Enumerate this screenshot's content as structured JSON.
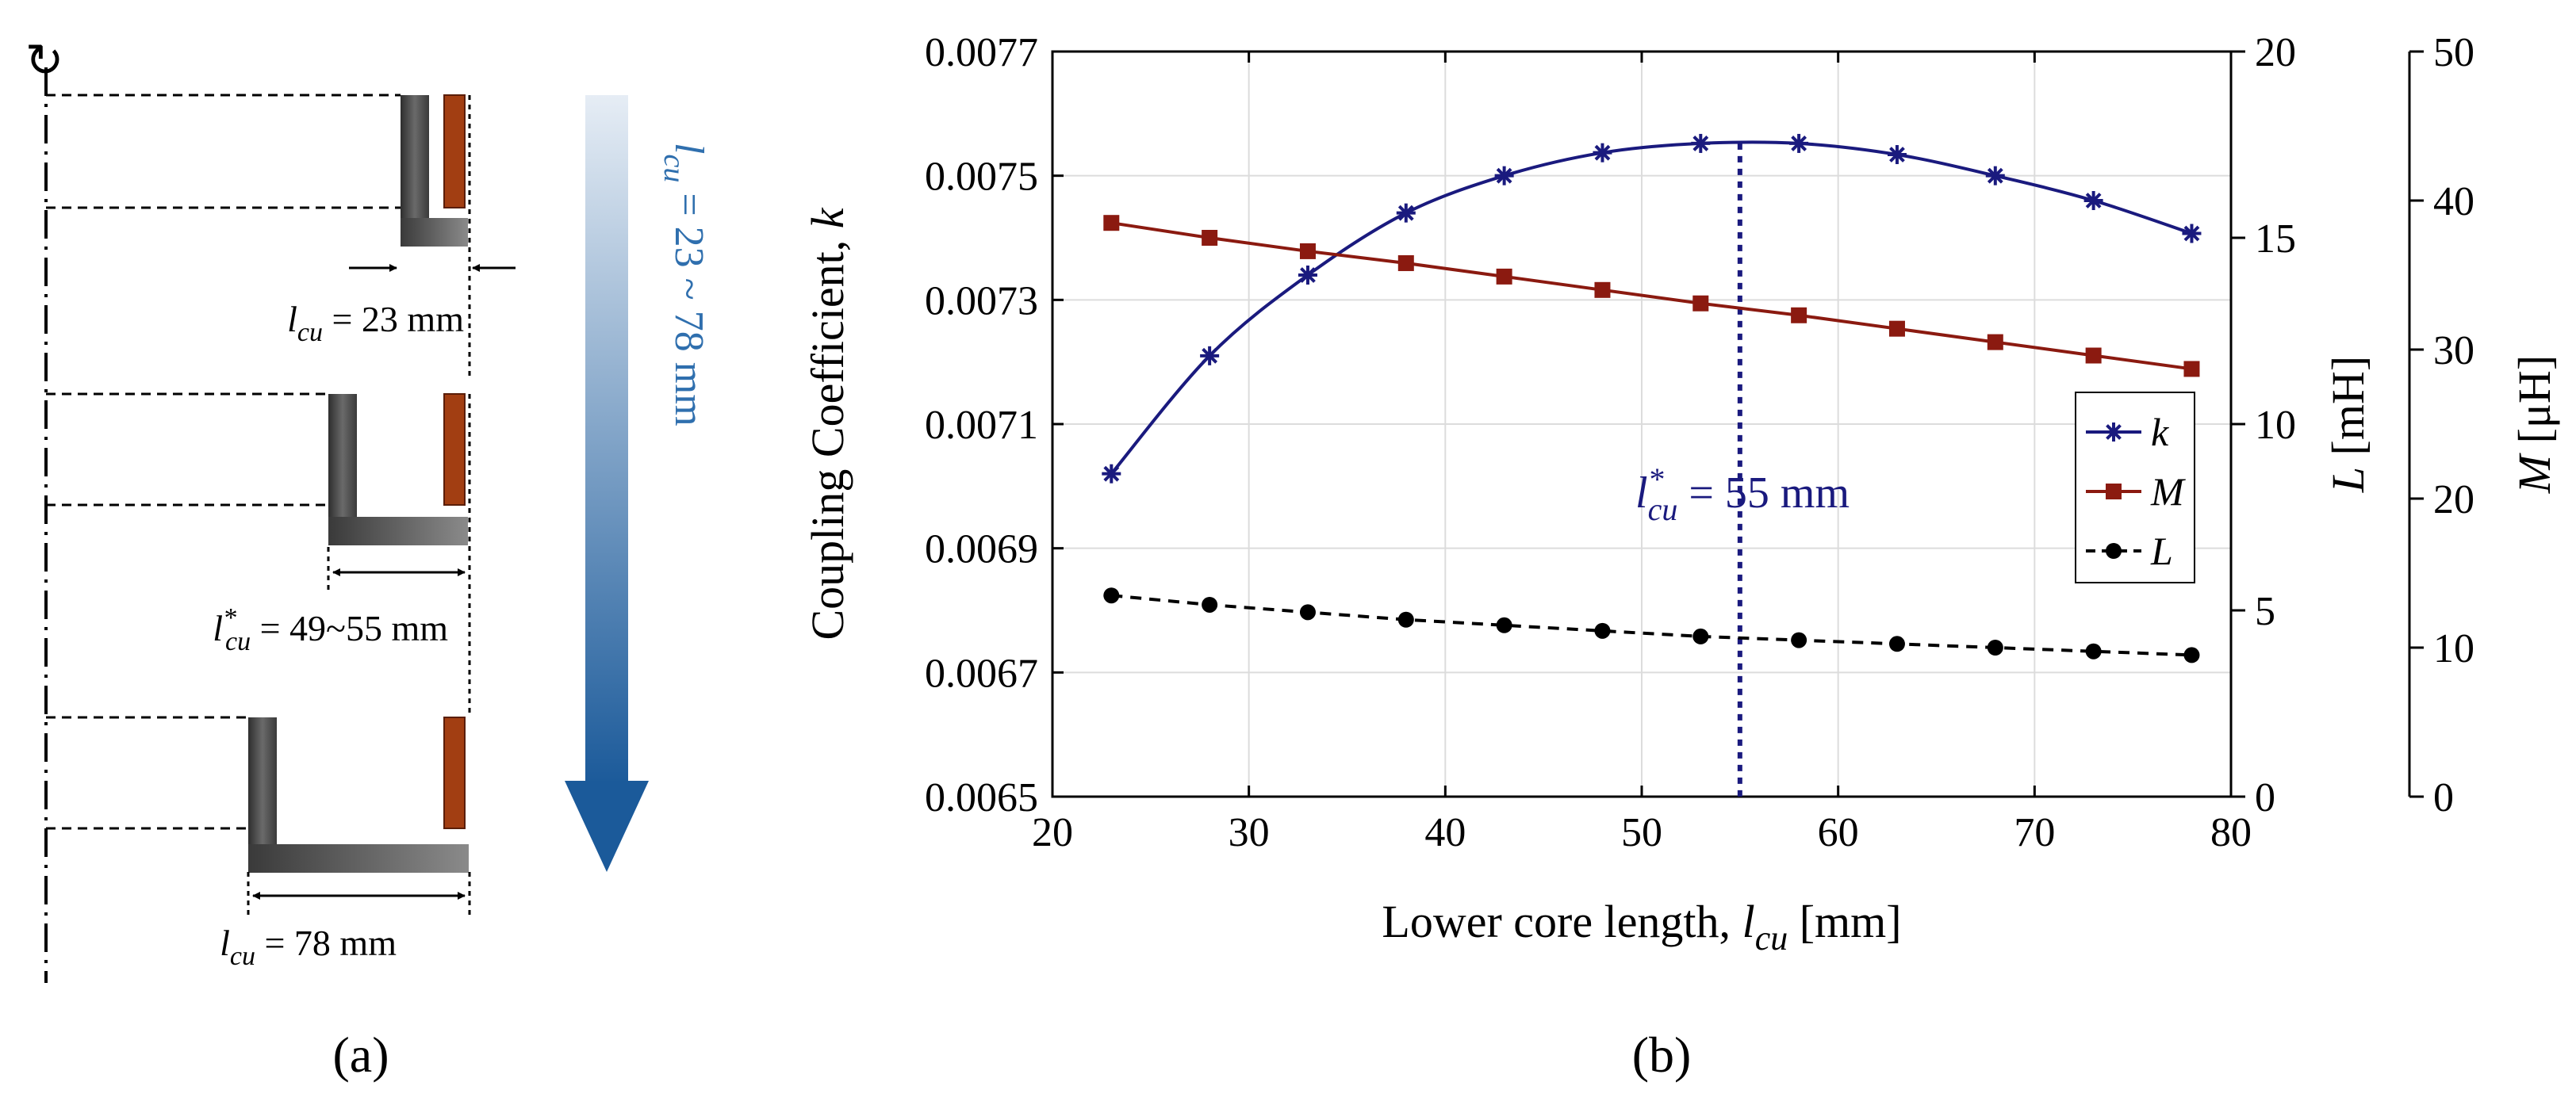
{
  "panel_a": {
    "label": "(a)",
    "rotation_symbol": "↻",
    "cases": [
      {
        "var": "l",
        "sub": "cu",
        "sup": "",
        "text": " = 23 mm"
      },
      {
        "var": "l",
        "sub": "cu",
        "sup": "*",
        "text": " = 49~55 mm"
      },
      {
        "var": "l",
        "sub": "cu",
        "sup": "",
        "text": " = 78 mm"
      }
    ],
    "sweep": {
      "var": "l",
      "sub": "cu",
      "text": " = 23 ~ 78 mm"
    },
    "colors": {
      "core": "#4a4a4a",
      "coil": "#a23e12",
      "arrow_top": "#e6edf5",
      "arrow_bottom": "#1b5a9a"
    }
  },
  "panel_b": {
    "label": "(b)",
    "annotation": {
      "var": "l",
      "sub": "cu",
      "sup": "*",
      "text": " = 55 mm",
      "x": 55
    }
  },
  "chart_data": {
    "type": "line",
    "x": [
      23,
      28,
      33,
      38,
      43,
      48,
      53,
      58,
      63,
      68,
      73,
      78
    ],
    "xlim": [
      20,
      80
    ],
    "xticks": [
      20,
      30,
      40,
      50,
      60,
      70,
      80
    ],
    "xlabel": "Lower core length, ",
    "xlabel_var": "l",
    "xlabel_sub": "cu",
    "xlabel_unit": " [mm]",
    "grid": true,
    "legend_position": "right",
    "axes": [
      {
        "id": "left",
        "label": "Coupling Coefficient, ",
        "label_var": "k",
        "lim": [
          0.0065,
          0.0077
        ],
        "ticks": [
          "0.0065",
          "0.0067",
          "0.0069",
          "0.0071",
          "0.0073",
          "0.0075",
          "0.0077"
        ]
      },
      {
        "id": "right1",
        "label_var": "L",
        "label": " [mH]",
        "lim": [
          0,
          20
        ],
        "ticks": [
          "0",
          "5",
          "10",
          "15",
          "20"
        ]
      },
      {
        "id": "right2",
        "label_var": "M",
        "label": " [μH]",
        "lim": [
          0,
          50
        ],
        "ticks": [
          "0",
          "10",
          "20",
          "30",
          "40",
          "50"
        ]
      }
    ],
    "series": [
      {
        "name": "k",
        "axis": "left",
        "color": "#1a1a7e",
        "marker": "asterisk",
        "dash": false,
        "values": [
          0.00702,
          0.00721,
          0.00734,
          0.00744,
          0.0075,
          0.007537,
          0.007552,
          0.007552,
          0.007534,
          0.0075,
          0.00746,
          0.007407
        ]
      },
      {
        "name": "M",
        "axis": "right2",
        "color": "#8b1a10",
        "marker": "square",
        "dash": false,
        "values": [
          38.5,
          37.5,
          36.6,
          35.8,
          34.9,
          34.0,
          33.1,
          32.3,
          31.4,
          30.5,
          29.6,
          28.7
        ]
      },
      {
        "name": "L",
        "axis": "right1",
        "color": "#000000",
        "marker": "circle",
        "dash": true,
        "values": [
          5.4,
          5.15,
          4.95,
          4.75,
          4.6,
          4.45,
          4.3,
          4.2,
          4.1,
          4.0,
          3.9,
          3.8
        ]
      }
    ]
  }
}
